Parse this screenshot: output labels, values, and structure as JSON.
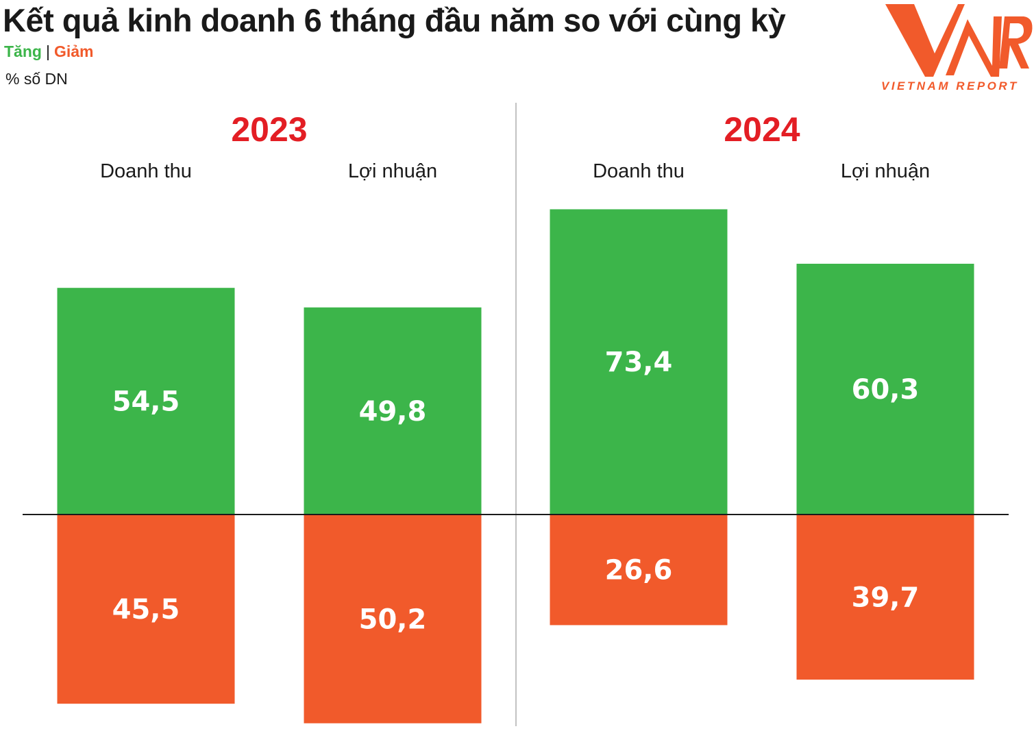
{
  "title": "Kết quả kinh doanh 6 tháng đầu năm so với cùng kỳ",
  "legend": {
    "increase": "Tăng",
    "decrease": "Giảm"
  },
  "unit": "% số DN",
  "logo": {
    "text": "VIETNAM REPORT",
    "brand_color": "#f15a2b"
  },
  "colors": {
    "increase": "#3cb54a",
    "decrease": "#f15a2b",
    "year": "#e31e24"
  },
  "chart_data": {
    "type": "bar",
    "stacked": "diverging",
    "unit": "% số DN",
    "groups": [
      {
        "year": "2023",
        "categories": [
          {
            "name": "Doanh thu",
            "increase": 54.5,
            "decrease": 45.5,
            "increase_label": "54,5",
            "decrease_label": "45,5"
          },
          {
            "name": "Lợi nhuận",
            "increase": 49.8,
            "decrease": 50.2,
            "increase_label": "49,8",
            "decrease_label": "50,2"
          }
        ]
      },
      {
        "year": "2024",
        "categories": [
          {
            "name": "Doanh thu",
            "increase": 73.4,
            "decrease": 26.6,
            "increase_label": "73,4",
            "decrease_label": "26,6"
          },
          {
            "name": "Lợi nhuận",
            "increase": 60.3,
            "decrease": 39.7,
            "increase_label": "60,3",
            "decrease_label": "39,7"
          }
        ]
      }
    ],
    "series": [
      {
        "name": "Tăng",
        "direction": "up"
      },
      {
        "name": "Giảm",
        "direction": "down"
      }
    ]
  }
}
